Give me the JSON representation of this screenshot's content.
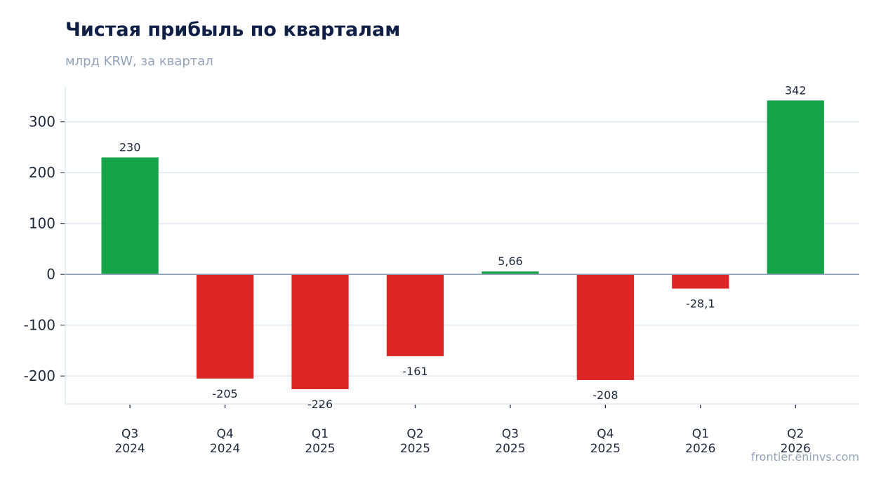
{
  "header": {
    "title": "Чистая прибыль по кварталам",
    "subtitle": "млрд KRW, за квартал"
  },
  "footer": {
    "source": "frontier.eninvs.com"
  },
  "colors": {
    "positive": "#16a34a",
    "negative": "#dc2626",
    "grid": "#e2e8f0",
    "zero_line": "#94a3b8",
    "axis": "#e2e8f0"
  },
  "chart_data": {
    "type": "bar",
    "title": "Чистая прибыль по кварталам",
    "subtitle": "млрд KRW, за квартал",
    "xlabel": "",
    "ylabel": "",
    "categories": [
      [
        "Q3",
        "2024"
      ],
      [
        "Q4",
        "2024"
      ],
      [
        "Q1",
        "2025"
      ],
      [
        "Q2",
        "2025"
      ],
      [
        "Q3",
        "2025"
      ],
      [
        "Q4",
        "2025"
      ],
      [
        "Q1",
        "2026"
      ],
      [
        "Q2",
        "2026"
      ]
    ],
    "values": [
      230,
      -205,
      -226,
      -161,
      5.66,
      -208,
      -28.1,
      342
    ],
    "value_labels": [
      "230",
      "-205",
      "-226",
      "-161",
      "5,66",
      "-208",
      "-28,1",
      "342"
    ],
    "y_ticks": [
      300,
      200,
      100,
      0,
      -100,
      -200
    ],
    "y_tick_labels": [
      "300",
      "200",
      "100",
      "0",
      "-100",
      "-200"
    ],
    "ylim": [
      -255,
      370
    ],
    "grid": true,
    "legend": "none"
  }
}
